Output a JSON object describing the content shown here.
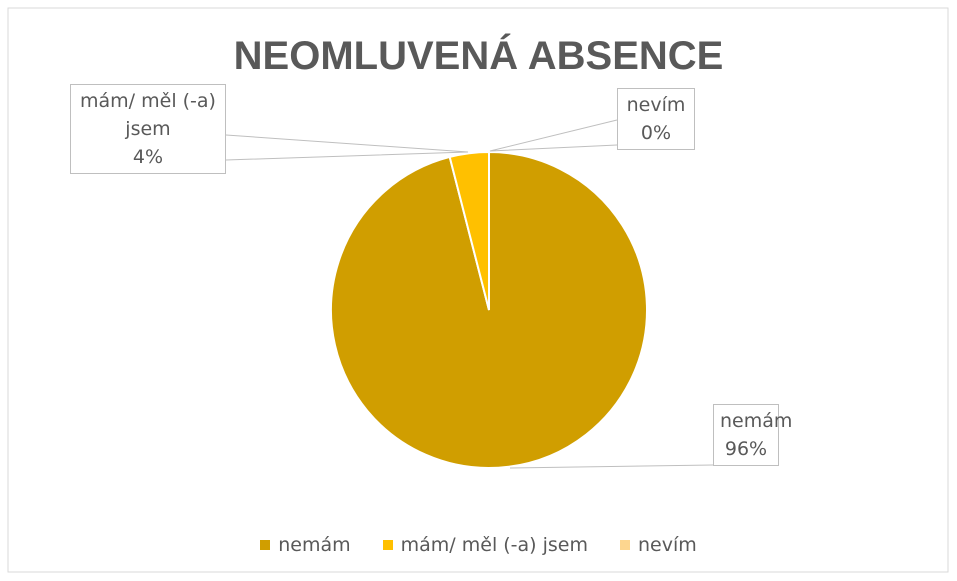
{
  "chart_data": {
    "type": "pie",
    "title": "NEOMLUVENÁ ABSENCE",
    "categories": [
      "nemám",
      "mám/ měl (-a) jsem",
      "nevím"
    ],
    "values": [
      96,
      4,
      0
    ],
    "value_labels": [
      "96%",
      "4%",
      "0%"
    ],
    "colors": [
      "#d09e00",
      "#ffc000",
      "#fdd68f"
    ],
    "legend": "bottom"
  }
}
